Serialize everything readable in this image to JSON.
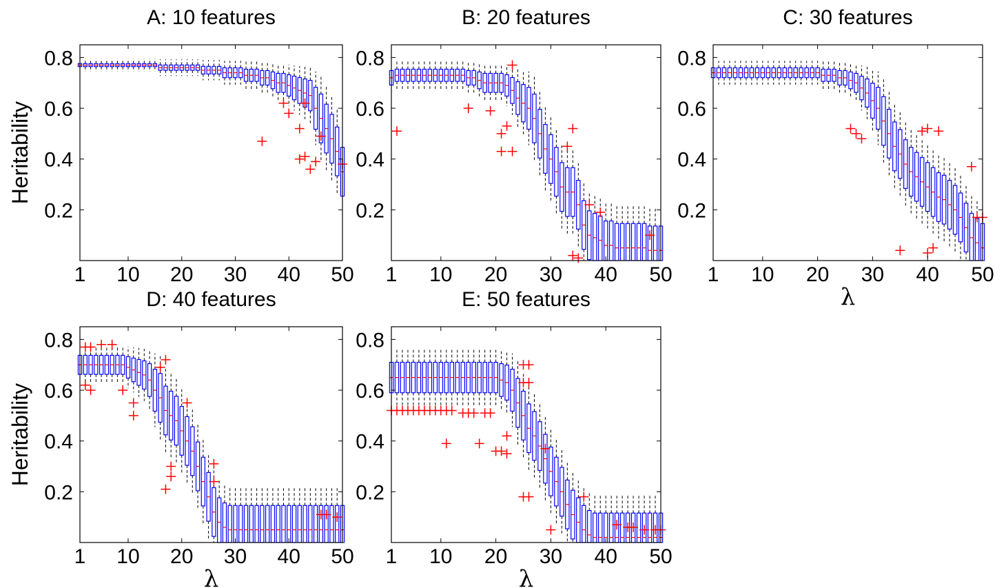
{
  "figure": {
    "colors": {
      "box": "#0000ff",
      "median": "#ff0000",
      "whisker": "#000000",
      "outlier": "#ff0000",
      "axes": "#000000"
    },
    "ylabel": "Heritability",
    "xlabel": "λ"
  },
  "chart_data": [
    {
      "type": "box",
      "title": "A: 10 features",
      "ylabel": "Heritability",
      "xlabel": "",
      "xlim": [
        1,
        50
      ],
      "ylim": [
        0,
        0.85
      ],
      "xticks": [
        "1",
        "10",
        "20",
        "30",
        "40",
        "50"
      ],
      "yticks": [
        "0.2",
        "0.4",
        "0.6",
        "0.8"
      ],
      "y_points": [
        0.77,
        0.77,
        0.77,
        0.77,
        0.77,
        0.77,
        0.77,
        0.77,
        0.77,
        0.77,
        0.77,
        0.77,
        0.77,
        0.77,
        0.77,
        0.76,
        0.76,
        0.76,
        0.76,
        0.76,
        0.76,
        0.76,
        0.76,
        0.75,
        0.75,
        0.75,
        0.75,
        0.74,
        0.74,
        0.74,
        0.74,
        0.73,
        0.73,
        0.73,
        0.72,
        0.72,
        0.71,
        0.7,
        0.7,
        0.69,
        0.68,
        0.67,
        0.66,
        0.65,
        0.6,
        0.56,
        0.52,
        0.48,
        0.43,
        0.35
      ],
      "outliers": [
        [
          35,
          0.47
        ],
        [
          39,
          0.62
        ],
        [
          40,
          0.58
        ],
        [
          42,
          0.52
        ],
        [
          42,
          0.4
        ],
        [
          43,
          0.62
        ],
        [
          43,
          0.41
        ],
        [
          44,
          0.36
        ],
        [
          45,
          0.39
        ],
        [
          46,
          0.49
        ],
        [
          50,
          0.38
        ]
      ]
    },
    {
      "type": "box",
      "title": "B: 20 features",
      "ylabel": "",
      "xlabel": "",
      "xlim": [
        1,
        50
      ],
      "ylim": [
        0,
        0.85
      ],
      "xticks": [
        "1",
        "10",
        "20",
        "30",
        "40",
        "50"
      ],
      "yticks": [
        "0.2",
        "0.4",
        "0.6",
        "0.8"
      ],
      "y_points": [
        0.72,
        0.73,
        0.73,
        0.73,
        0.73,
        0.73,
        0.73,
        0.73,
        0.73,
        0.73,
        0.73,
        0.73,
        0.73,
        0.73,
        0.72,
        0.72,
        0.71,
        0.7,
        0.7,
        0.7,
        0.7,
        0.69,
        0.67,
        0.64,
        0.62,
        0.6,
        0.56,
        0.5,
        0.44,
        0.4,
        0.35,
        0.29,
        0.27,
        0.27,
        0.22,
        0.14,
        0.1,
        0.09,
        0.08,
        0.06,
        0.06,
        0.05,
        0.05,
        0.05,
        0.05,
        0.05,
        0.05,
        0.04,
        0.04,
        0.04
      ],
      "outliers": [
        [
          2,
          0.51
        ],
        [
          15,
          0.6
        ],
        [
          19,
          0.59
        ],
        [
          21,
          0.5
        ],
        [
          21,
          0.43
        ],
        [
          22,
          0.53
        ],
        [
          23,
          0.77
        ],
        [
          23,
          0.43
        ],
        [
          33,
          0.45
        ],
        [
          34,
          0.52
        ],
        [
          34,
          0.02
        ],
        [
          35,
          0.01
        ],
        [
          37,
          0.22
        ],
        [
          39,
          0.19
        ],
        [
          48,
          0.1
        ]
      ]
    },
    {
      "type": "box",
      "title": "C: 30 features",
      "ylabel": "",
      "xlabel": "λ",
      "xlim": [
        1,
        50
      ],
      "ylim": [
        0,
        0.85
      ],
      "xticks": [
        "1",
        "10",
        "20",
        "30",
        "40",
        "50"
      ],
      "yticks": [
        "0.2",
        "0.4",
        "0.6",
        "0.8"
      ],
      "y_points": [
        0.74,
        0.74,
        0.74,
        0.74,
        0.74,
        0.74,
        0.74,
        0.74,
        0.74,
        0.74,
        0.74,
        0.74,
        0.74,
        0.74,
        0.74,
        0.74,
        0.74,
        0.74,
        0.74,
        0.74,
        0.73,
        0.73,
        0.73,
        0.72,
        0.72,
        0.71,
        0.7,
        0.68,
        0.66,
        0.63,
        0.6,
        0.55,
        0.5,
        0.45,
        0.42,
        0.38,
        0.35,
        0.33,
        0.31,
        0.29,
        0.27,
        0.25,
        0.24,
        0.22,
        0.2,
        0.17,
        0.13,
        0.09,
        0.07,
        0.05
      ],
      "outliers": [
        [
          26,
          0.52
        ],
        [
          27,
          0.5
        ],
        [
          28,
          0.48
        ],
        [
          35,
          0.04
        ],
        [
          39,
          0.51
        ],
        [
          40,
          0.52
        ],
        [
          40,
          0.03
        ],
        [
          41,
          0.05
        ],
        [
          42,
          0.51
        ],
        [
          48,
          0.37
        ],
        [
          49,
          0.17
        ],
        [
          50,
          0.17
        ]
      ]
    },
    {
      "type": "box",
      "title": "D: 40 features",
      "ylabel": "Heritability",
      "xlabel": "λ",
      "xlim": [
        1,
        50
      ],
      "ylim": [
        0,
        0.85
      ],
      "xticks": [
        "1",
        "10",
        "20",
        "30",
        "40",
        "50"
      ],
      "yticks": [
        "0.2",
        "0.4",
        "0.6",
        "0.8"
      ],
      "y_points": [
        0.7,
        0.7,
        0.7,
        0.7,
        0.7,
        0.7,
        0.7,
        0.7,
        0.7,
        0.69,
        0.68,
        0.67,
        0.66,
        0.64,
        0.6,
        0.57,
        0.52,
        0.5,
        0.48,
        0.44,
        0.4,
        0.36,
        0.3,
        0.24,
        0.18,
        0.12,
        0.08,
        0.06,
        0.05,
        0.05,
        0.05,
        0.05,
        0.05,
        0.05,
        0.05,
        0.05,
        0.05,
        0.05,
        0.05,
        0.05,
        0.05,
        0.05,
        0.05,
        0.05,
        0.05,
        0.05,
        0.05,
        0.05,
        0.05,
        0.05
      ],
      "outliers": [
        [
          2,
          0.77
        ],
        [
          3,
          0.77
        ],
        [
          5,
          0.78
        ],
        [
          7,
          0.78
        ],
        [
          2,
          0.62
        ],
        [
          3,
          0.6
        ],
        [
          9,
          0.6
        ],
        [
          11,
          0.55
        ],
        [
          11,
          0.5
        ],
        [
          16,
          0.69
        ],
        [
          17,
          0.72
        ],
        [
          17,
          0.21
        ],
        [
          18,
          0.3
        ],
        [
          18,
          0.26
        ],
        [
          21,
          0.55
        ],
        [
          26,
          0.31
        ],
        [
          26,
          0.24
        ],
        [
          46,
          0.11
        ],
        [
          47,
          0.11
        ],
        [
          49,
          0.1
        ]
      ]
    },
    {
      "type": "box",
      "title": "E: 50 features",
      "ylabel": "",
      "xlabel": "λ",
      "xlim": [
        1,
        50
      ],
      "ylim": [
        0,
        0.85
      ],
      "xticks": [
        "1",
        "10",
        "20",
        "30",
        "40",
        "50"
      ],
      "yticks": [
        "0.2",
        "0.4",
        "0.6",
        "0.8"
      ],
      "y_points": [
        0.65,
        0.65,
        0.65,
        0.65,
        0.65,
        0.65,
        0.65,
        0.65,
        0.65,
        0.65,
        0.65,
        0.65,
        0.65,
        0.65,
        0.65,
        0.65,
        0.65,
        0.65,
        0.65,
        0.65,
        0.64,
        0.63,
        0.6,
        0.55,
        0.5,
        0.45,
        0.42,
        0.38,
        0.33,
        0.28,
        0.24,
        0.2,
        0.15,
        0.11,
        0.08,
        0.05,
        0.03,
        0.02,
        0.02,
        0.02,
        0.02,
        0.02,
        0.02,
        0.02,
        0.02,
        0.02,
        0.02,
        0.02,
        0.02,
        0.02
      ],
      "outliers": [
        [
          1,
          0.52
        ],
        [
          2,
          0.52
        ],
        [
          3,
          0.52
        ],
        [
          4,
          0.52
        ],
        [
          5,
          0.52
        ],
        [
          6,
          0.52
        ],
        [
          7,
          0.52
        ],
        [
          8,
          0.52
        ],
        [
          9,
          0.52
        ],
        [
          10,
          0.52
        ],
        [
          11,
          0.52
        ],
        [
          12,
          0.52
        ],
        [
          14,
          0.51
        ],
        [
          15,
          0.51
        ],
        [
          16,
          0.51
        ],
        [
          18,
          0.51
        ],
        [
          19,
          0.51
        ],
        [
          11,
          0.39
        ],
        [
          17,
          0.39
        ],
        [
          20,
          0.36
        ],
        [
          21,
          0.36
        ],
        [
          22,
          0.35
        ],
        [
          22,
          0.42
        ],
        [
          25,
          0.7
        ],
        [
          26,
          0.7
        ],
        [
          25,
          0.63
        ],
        [
          26,
          0.63
        ],
        [
          25,
          0.18
        ],
        [
          26,
          0.18
        ],
        [
          29,
          0.37
        ],
        [
          30,
          0.05
        ],
        [
          36,
          0.18
        ],
        [
          42,
          0.07
        ],
        [
          44,
          0.06
        ],
        [
          45,
          0.06
        ],
        [
          47,
          0.05
        ],
        [
          49,
          0.05
        ],
        [
          50,
          0.05
        ]
      ]
    }
  ]
}
